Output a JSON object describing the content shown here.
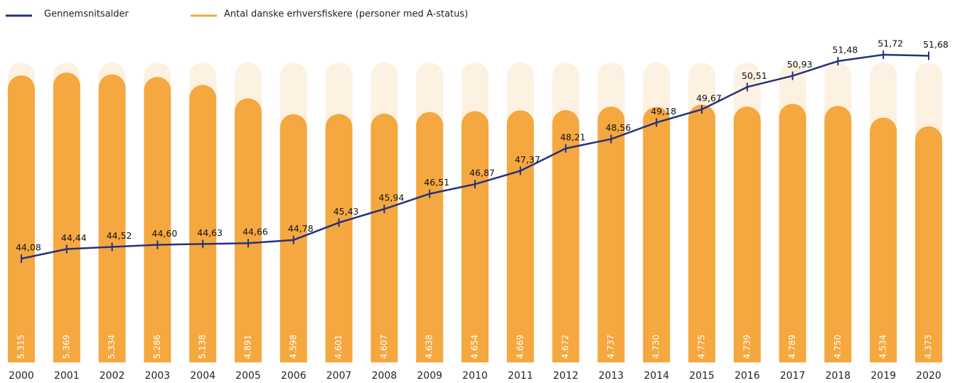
{
  "chart_data": {
    "type": "bar",
    "categories": [
      "2000",
      "2001",
      "2002",
      "2003",
      "2004",
      "2005",
      "2006",
      "2007",
      "2008",
      "2009",
      "2010",
      "2011",
      "2012",
      "2013",
      "2014",
      "2015",
      "2016",
      "2017",
      "2018",
      "2019",
      "2020"
    ],
    "series": [
      {
        "name": "Gennemsnitsalder",
        "type": "line",
        "axis": "y2",
        "color": "#26317a",
        "values": [
          44.08,
          44.44,
          44.52,
          44.6,
          44.63,
          44.66,
          44.78,
          45.43,
          45.94,
          46.51,
          46.87,
          47.37,
          48.21,
          48.56,
          49.18,
          49.67,
          50.51,
          50.93,
          51.48,
          51.72,
          51.68
        ],
        "value_labels": [
          "44,08",
          "44,44",
          "44,52",
          "44,60",
          "44,63",
          "44,66",
          "44,78",
          "45,43",
          "45,94",
          "46,51",
          "46,87",
          "47,37",
          "48,21",
          "48,56",
          "49,18",
          "49,67",
          "50,51",
          "50,93",
          "51,48",
          "51,72",
          "51,68"
        ]
      },
      {
        "name": "Antal danske erhversfiskere (personer med A-status)",
        "type": "bar",
        "color": "#f5a83f",
        "values": [
          5315,
          5369,
          5334,
          5286,
          5138,
          4891,
          4598,
          4601,
          4607,
          4638,
          4654,
          4669,
          4672,
          4737,
          4730,
          4775,
          4739,
          4789,
          4750,
          4534,
          4373
        ],
        "value_labels": [
          "5.315",
          "5.369",
          "5.334",
          "5.286",
          "5.138",
          "4.891",
          "4.598",
          "4.601",
          "4.607",
          "4.638",
          "4.654",
          "4.669",
          "4.672",
          "4.737",
          "4.730",
          "4.775",
          "4.739",
          "4.789",
          "4.750",
          "4.534",
          "4.373"
        ]
      }
    ]
  }
}
